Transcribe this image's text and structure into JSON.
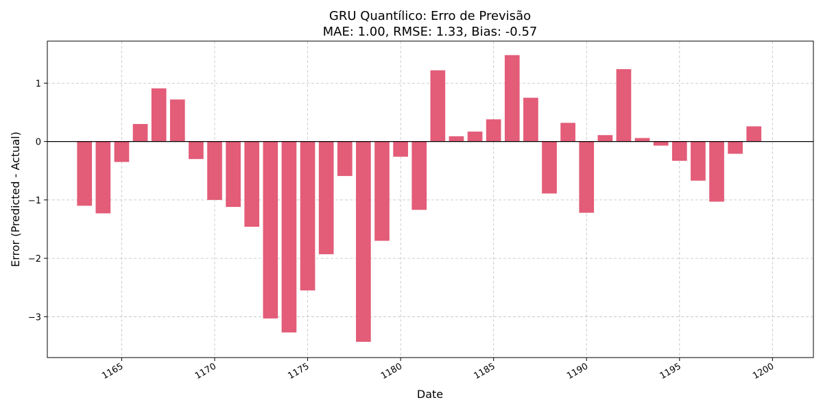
{
  "chart_data": {
    "type": "bar",
    "title": "GRU Quantílico: Erro de Previsão",
    "subtitle": "MAE: 1.00, RMSE: 1.33, Bias: -0.57",
    "xlabel": "Date",
    "ylabel": "Error (Predicted - Actual)",
    "bar_color": "#e35c78",
    "zero_line_color": "#000000",
    "grid": true,
    "xlim": [
      1161,
      1202.2
    ],
    "ylim": [
      -3.7,
      1.72
    ],
    "xticks": [
      1165,
      1170,
      1175,
      1180,
      1185,
      1190,
      1195,
      1200
    ],
    "yticks": [
      -3,
      -2,
      -1,
      0,
      1
    ],
    "ytick_labels": [
      "−3",
      "−2",
      "−1",
      "0",
      "1"
    ],
    "x": [
      1163,
      1164,
      1165,
      1166,
      1167,
      1168,
      1169,
      1170,
      1171,
      1172,
      1173,
      1174,
      1175,
      1176,
      1177,
      1178,
      1179,
      1180,
      1181,
      1182,
      1183,
      1184,
      1185,
      1186,
      1187,
      1188,
      1189,
      1190,
      1191,
      1192,
      1193,
      1194,
      1195,
      1196,
      1197,
      1198,
      1199
    ],
    "values": [
      -1.1,
      -1.23,
      -0.35,
      0.3,
      0.91,
      0.72,
      -0.3,
      -1.0,
      -1.12,
      -1.46,
      -3.03,
      -3.27,
      -2.55,
      -1.93,
      -0.59,
      -3.43,
      -1.7,
      -0.26,
      -1.17,
      1.22,
      0.09,
      0.17,
      0.38,
      1.48,
      0.75,
      -0.89,
      0.32,
      -1.22,
      0.11,
      1.24,
      0.06,
      -0.07,
      -0.33,
      -0.67,
      -1.03,
      -0.21,
      0.26
    ]
  }
}
